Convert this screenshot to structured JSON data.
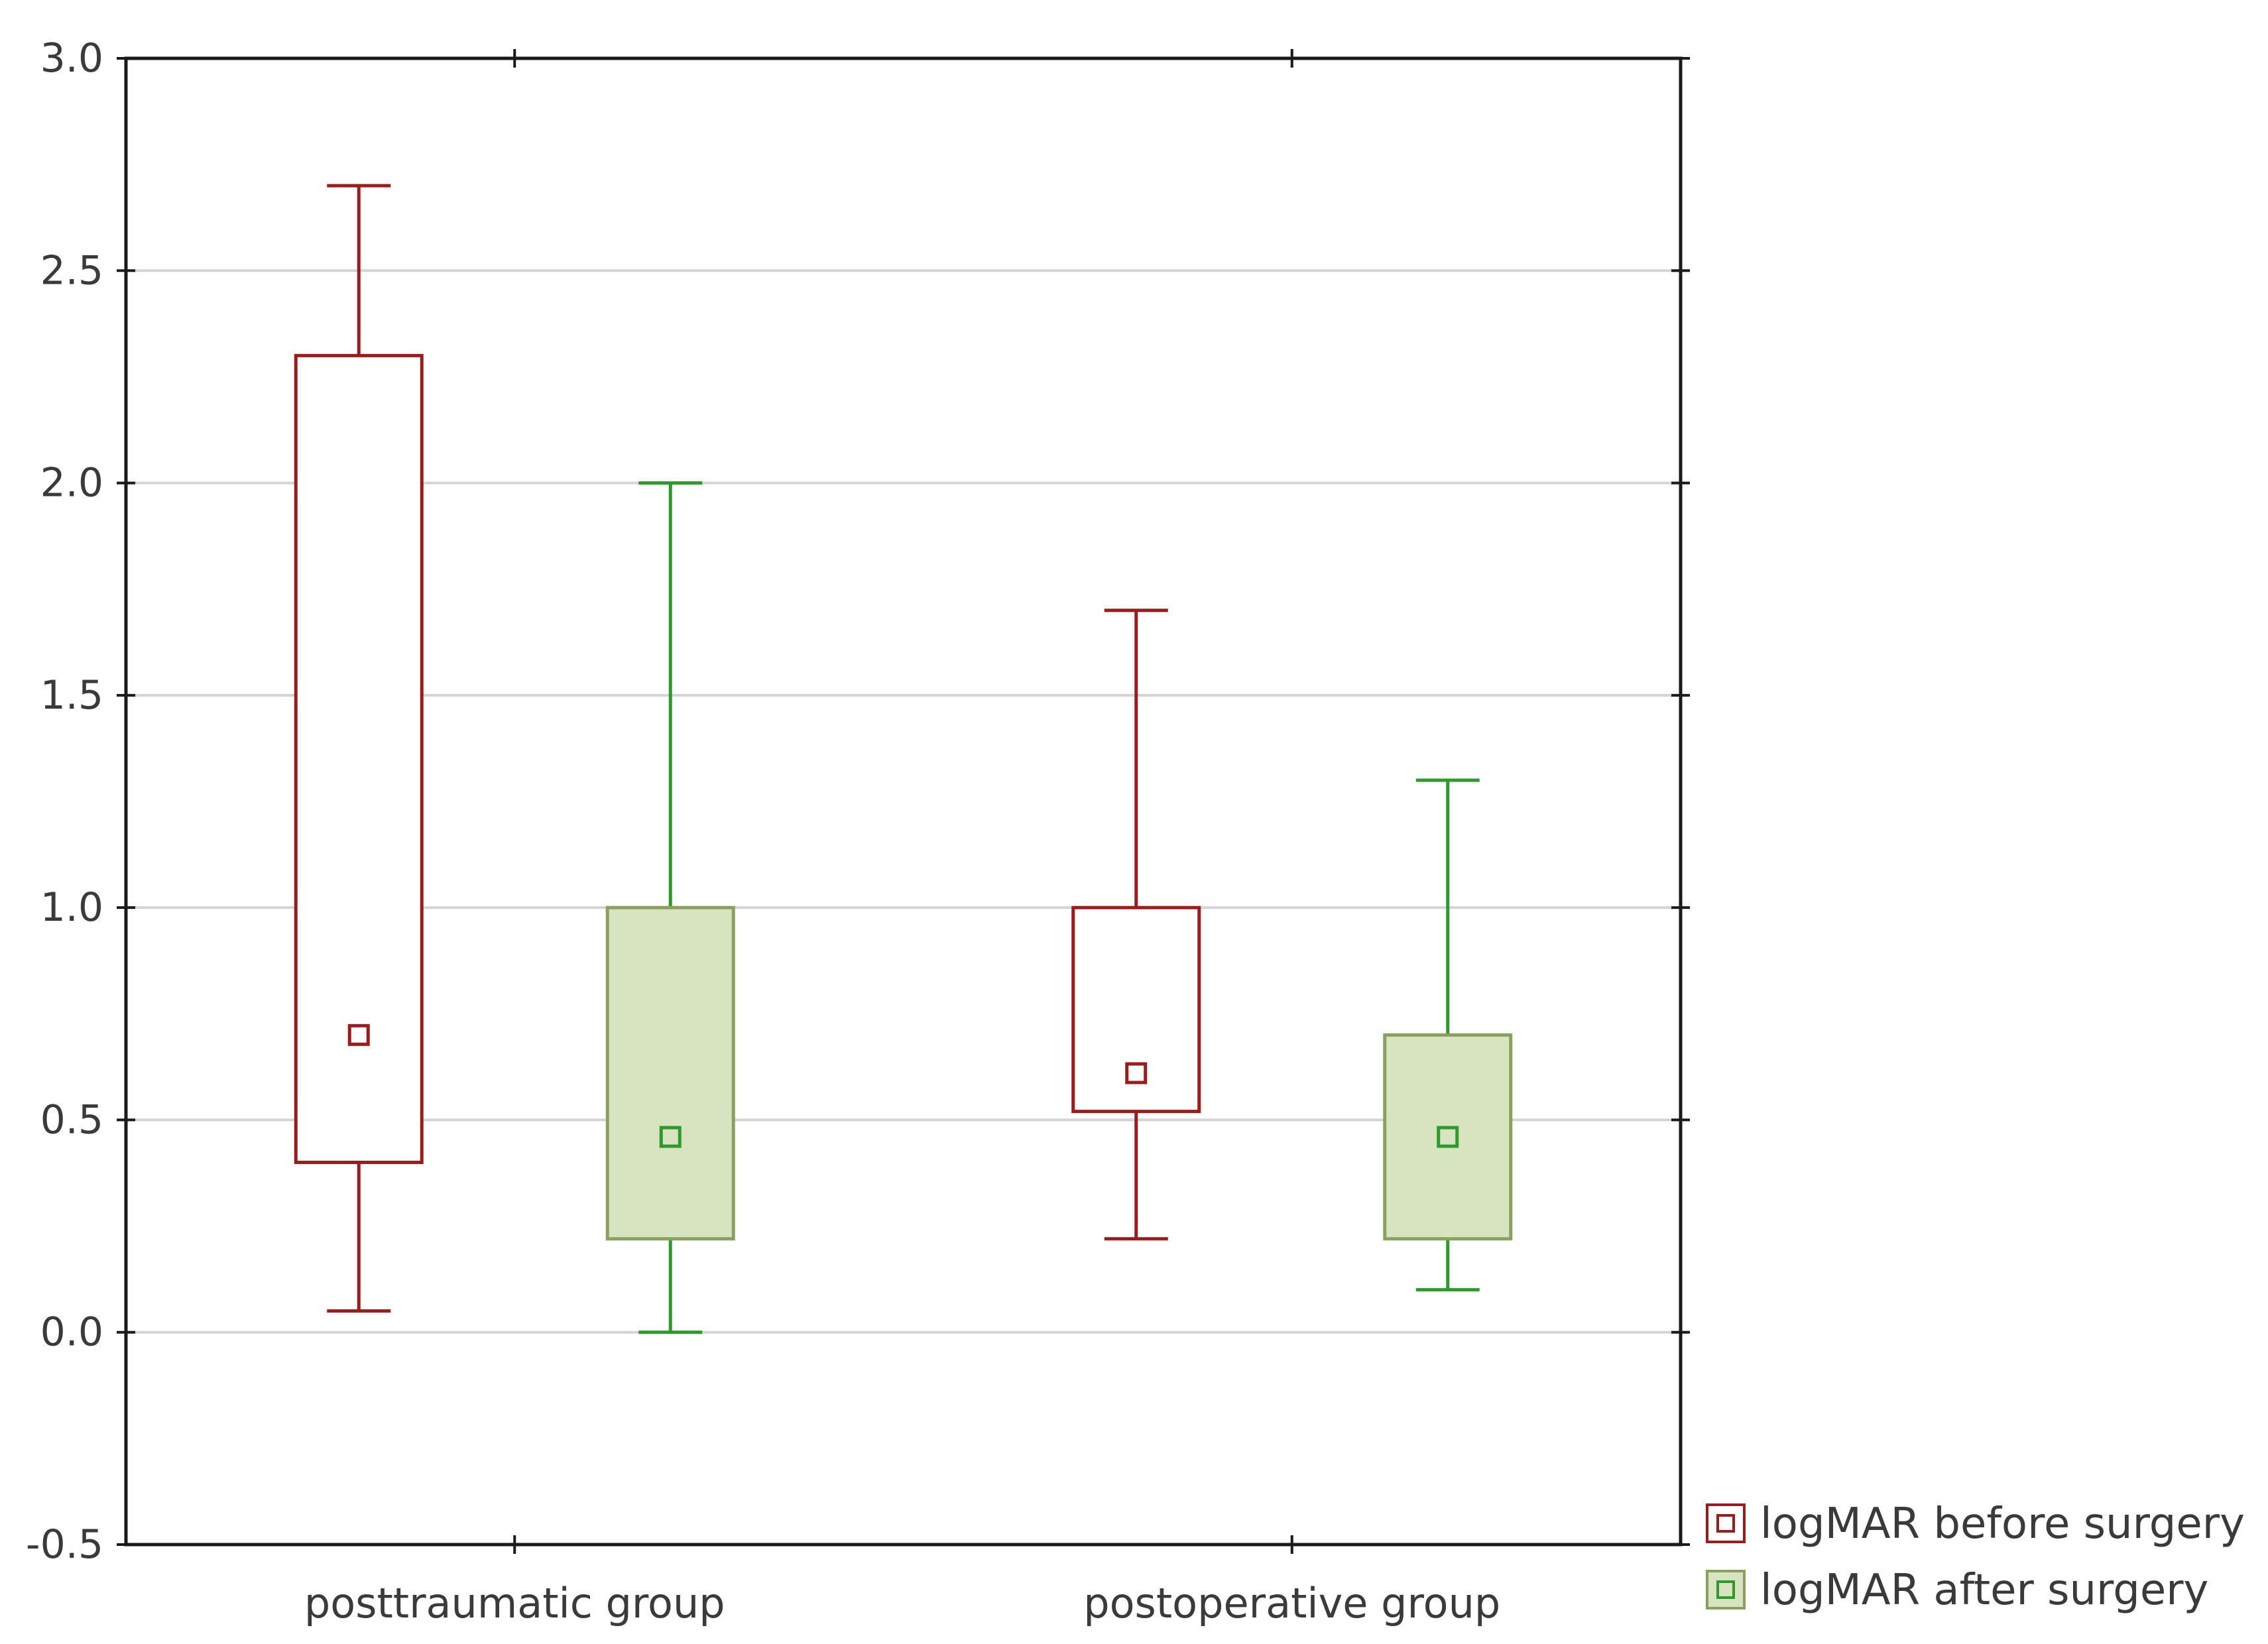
{
  "chart_data": {
    "type": "box",
    "title": "",
    "xlabel": "",
    "ylabel": "",
    "ylim": [
      -0.5,
      3.0
    ],
    "yticks": [
      "3.0",
      "2.5",
      "2.0",
      "1.5",
      "1.0",
      "0.5",
      "0.0",
      "-0.5"
    ],
    "grid": true,
    "legend_position": "bottom-right, outside plot",
    "categories": [
      "posttraumatic group",
      "postoperative group"
    ],
    "series": [
      {
        "name": "logMAR before surgery",
        "color": "#9b1c1c",
        "fill": "#ffffff",
        "boxes": [
          {
            "whisker_low": 0.05,
            "q1": 0.4,
            "center": 0.7,
            "q3": 2.3,
            "whisker_high": 2.7
          },
          {
            "whisker_low": 0.22,
            "q1": 0.52,
            "center": 0.61,
            "q3": 1.0,
            "whisker_high": 1.7
          }
        ]
      },
      {
        "name": "logMAR after surgery",
        "color": "#2e9a2e",
        "fill": "#d8e4bf",
        "boxes": [
          {
            "whisker_low": 0.0,
            "q1": 0.22,
            "center": 0.46,
            "q3": 1.0,
            "whisker_high": 2.0
          },
          {
            "whisker_low": 0.1,
            "q1": 0.22,
            "center": 0.46,
            "q3": 0.7,
            "whisker_high": 1.3
          }
        ]
      }
    ]
  }
}
